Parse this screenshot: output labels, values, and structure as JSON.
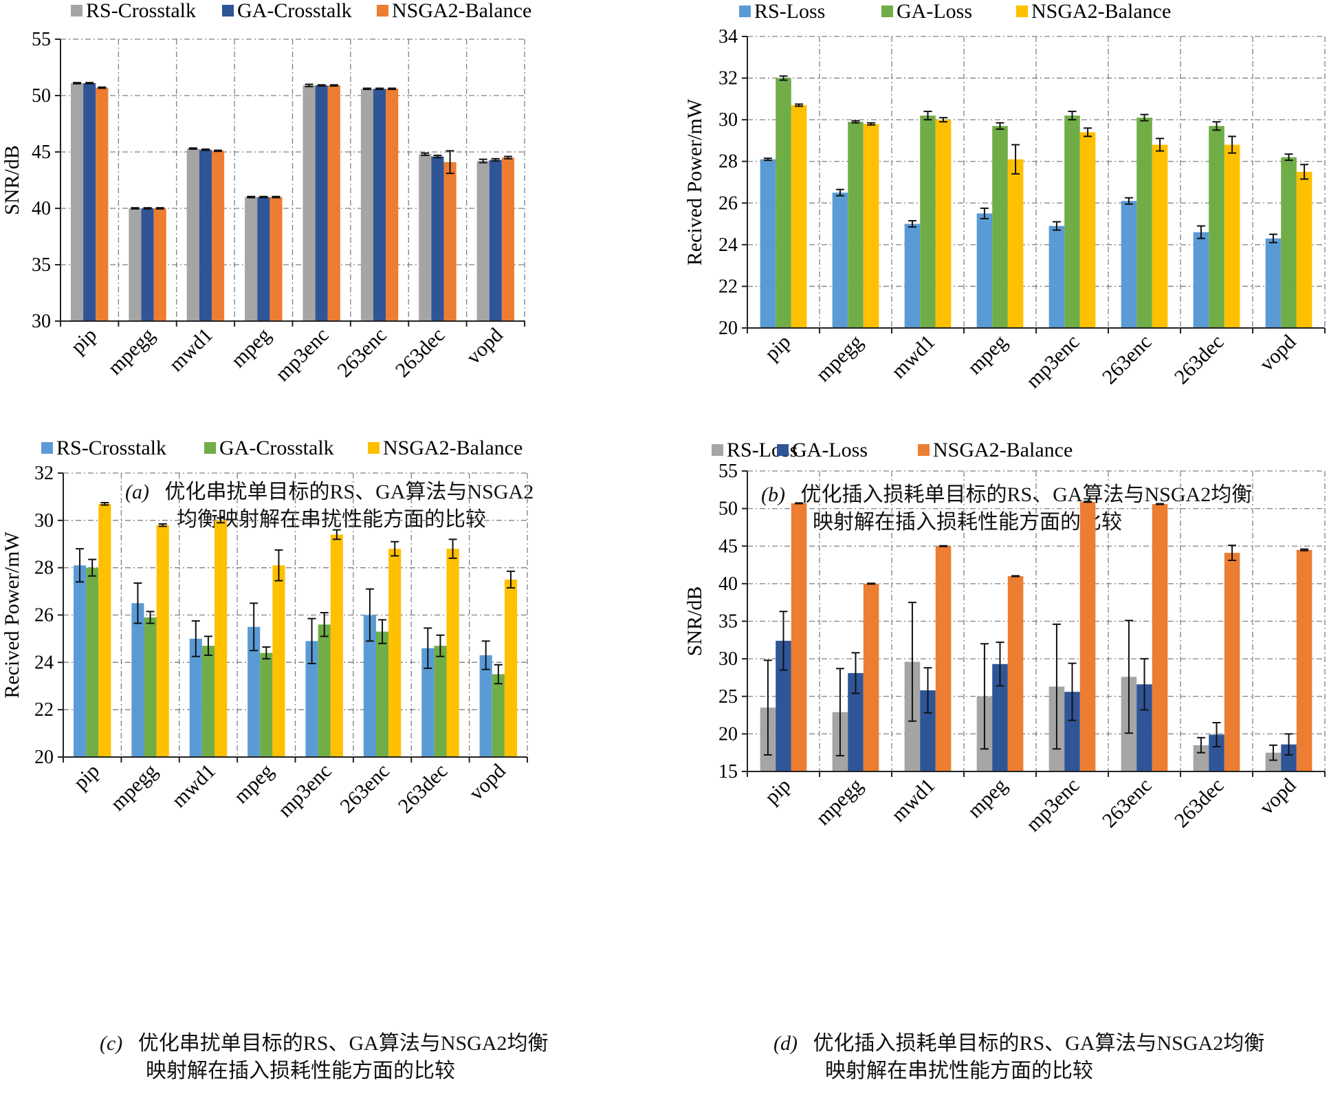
{
  "chart_data": [
    {
      "id": "a",
      "type": "bar",
      "caption_letter": "(a)",
      "caption_lines": [
        "优化串扰单目标的RS、GA算法与NSGA2",
        "均衡映射解在串扰性能方面的比较"
      ],
      "categories": [
        "pip",
        "mpegg",
        "mwd1",
        "mpeg",
        "mp3enc",
        "263enc",
        "263dec",
        "vopd"
      ],
      "ylabel": "SNR/dB",
      "ylim": [
        30,
        55
      ],
      "yticks": [
        30,
        35,
        40,
        45,
        50,
        55
      ],
      "grid": true,
      "legend_position": "top",
      "series": [
        {
          "name": "RS-Crosstalk",
          "color": "#a5a5a5",
          "values": [
            51.1,
            40.0,
            45.3,
            41.0,
            50.9,
            50.6,
            44.8,
            44.2
          ],
          "errors": [
            0.05,
            0.05,
            0.05,
            0.05,
            0.1,
            0.05,
            0.1,
            0.15
          ]
        },
        {
          "name": "GA-Crosstalk",
          "color": "#2f5597",
          "values": [
            51.1,
            40.0,
            45.2,
            41.0,
            50.9,
            50.6,
            44.6,
            44.3
          ],
          "errors": [
            0.05,
            0.05,
            0.05,
            0.05,
            0.05,
            0.05,
            0.1,
            0.1
          ]
        },
        {
          "name": "NSGA2-Balance",
          "color": "#ed7d31",
          "values": [
            50.7,
            40.0,
            45.1,
            41.0,
            50.9,
            50.6,
            44.1,
            44.5
          ],
          "errors": [
            0.05,
            0.05,
            0.05,
            0.05,
            0.05,
            0.05,
            1.0,
            0.1
          ]
        }
      ]
    },
    {
      "id": "b",
      "type": "bar",
      "caption_letter": "(b)",
      "caption_lines": [
        "优化插入损耗单目标的RS、GA算法与NSGA2均衡",
        "映射解在插入损耗性能方面的比较"
      ],
      "categories": [
        "pip",
        "mpegg",
        "mwd1",
        "mpeg",
        "mp3enc",
        "263enc",
        "263dec",
        "vopd"
      ],
      "ylabel": "Recived Power/mW",
      "ylim": [
        20,
        34
      ],
      "yticks": [
        20,
        22,
        24,
        26,
        28,
        30,
        32,
        34
      ],
      "grid": true,
      "legend_position": "top",
      "series": [
        {
          "name": "RS-Loss",
          "color": "#5b9bd5",
          "values": [
            28.1,
            26.5,
            25.0,
            25.5,
            24.9,
            26.1,
            24.6,
            24.3
          ],
          "errors": [
            0.05,
            0.15,
            0.15,
            0.25,
            0.2,
            0.15,
            0.3,
            0.2
          ]
        },
        {
          "name": "GA-Loss",
          "color": "#70ad47",
          "values": [
            32.0,
            29.9,
            30.2,
            29.7,
            30.2,
            30.1,
            29.7,
            28.2
          ],
          "errors": [
            0.1,
            0.05,
            0.2,
            0.15,
            0.2,
            0.15,
            0.2,
            0.15
          ]
        },
        {
          "name": "NSGA2-Balance",
          "color": "#ffc000",
          "values": [
            30.7,
            29.8,
            30.0,
            28.1,
            29.4,
            28.8,
            28.8,
            27.5
          ],
          "errors": [
            0.05,
            0.05,
            0.1,
            0.7,
            0.2,
            0.3,
            0.4,
            0.35
          ]
        }
      ]
    },
    {
      "id": "c",
      "type": "bar",
      "caption_letter": "(c)",
      "caption_lines": [
        "优化串扰单目标的RS、GA算法与NSGA2均衡",
        "映射解在插入损耗性能方面的比较"
      ],
      "categories": [
        "pip",
        "mpegg",
        "mwd1",
        "mpeg",
        "mp3enc",
        "263enc",
        "263dec",
        "vopd"
      ],
      "ylabel": "Recived Power/mW",
      "ylim": [
        20,
        32
      ],
      "yticks": [
        20,
        22,
        24,
        26,
        28,
        30,
        32
      ],
      "grid": true,
      "legend_position": "top",
      "series": [
        {
          "name": "RS-Crosstalk",
          "color": "#5b9bd5",
          "values": [
            28.1,
            26.5,
            25.0,
            25.5,
            24.9,
            26.0,
            24.6,
            24.3
          ],
          "errors": [
            0.7,
            0.85,
            0.75,
            1.0,
            0.95,
            1.1,
            0.85,
            0.6
          ]
        },
        {
          "name": "GA-Crosstalk",
          "color": "#70ad47",
          "values": [
            28.0,
            25.9,
            24.7,
            24.4,
            25.6,
            25.3,
            24.7,
            23.5
          ],
          "errors": [
            0.35,
            0.25,
            0.4,
            0.25,
            0.5,
            0.5,
            0.45,
            0.4
          ]
        },
        {
          "name": "NSGA2-Balance",
          "color": "#ffc000",
          "values": [
            30.7,
            29.8,
            30.0,
            28.1,
            29.4,
            28.8,
            28.8,
            27.5
          ],
          "errors": [
            0.05,
            0.05,
            0.1,
            0.65,
            0.2,
            0.3,
            0.4,
            0.35
          ]
        }
      ]
    },
    {
      "id": "d",
      "type": "bar",
      "caption_letter": "(d)",
      "caption_lines": [
        "优化插入损耗单目标的RS、GA算法与NSGA2均衡",
        "映射解在串扰性能方面的比较"
      ],
      "categories": [
        "pip",
        "mpegg",
        "mwd1",
        "mpeg",
        "mp3enc",
        "263enc",
        "263dec",
        "vopd"
      ],
      "ylabel": "SNR/dB",
      "ylim": [
        15,
        55
      ],
      "yticks": [
        15,
        20,
        25,
        30,
        35,
        40,
        45,
        50,
        55
      ],
      "grid": true,
      "legend_position": "top",
      "series": [
        {
          "name": "RS-Loss",
          "color": "#a5a5a5",
          "values": [
            23.5,
            22.9,
            29.6,
            25.0,
            26.3,
            27.6,
            18.5,
            17.5
          ],
          "errors": [
            6.3,
            5.8,
            7.9,
            7.0,
            8.3,
            7.5,
            1.0,
            1.0
          ]
        },
        {
          "name": "GA-Loss",
          "color": "#2f5597",
          "values": [
            32.4,
            28.1,
            25.8,
            29.3,
            25.6,
            26.6,
            19.9,
            18.6
          ],
          "errors": [
            3.9,
            2.7,
            3.0,
            2.9,
            3.8,
            3.4,
            1.6,
            1.4
          ]
        },
        {
          "name": "NSGA2-Balance",
          "color": "#ed7d31",
          "values": [
            50.7,
            40.0,
            45.0,
            41.0,
            50.9,
            50.6,
            44.1,
            44.5
          ],
          "errors": [
            0.05,
            0.05,
            0.05,
            0.05,
            0.05,
            0.05,
            1.0,
            0.1
          ]
        }
      ]
    }
  ]
}
